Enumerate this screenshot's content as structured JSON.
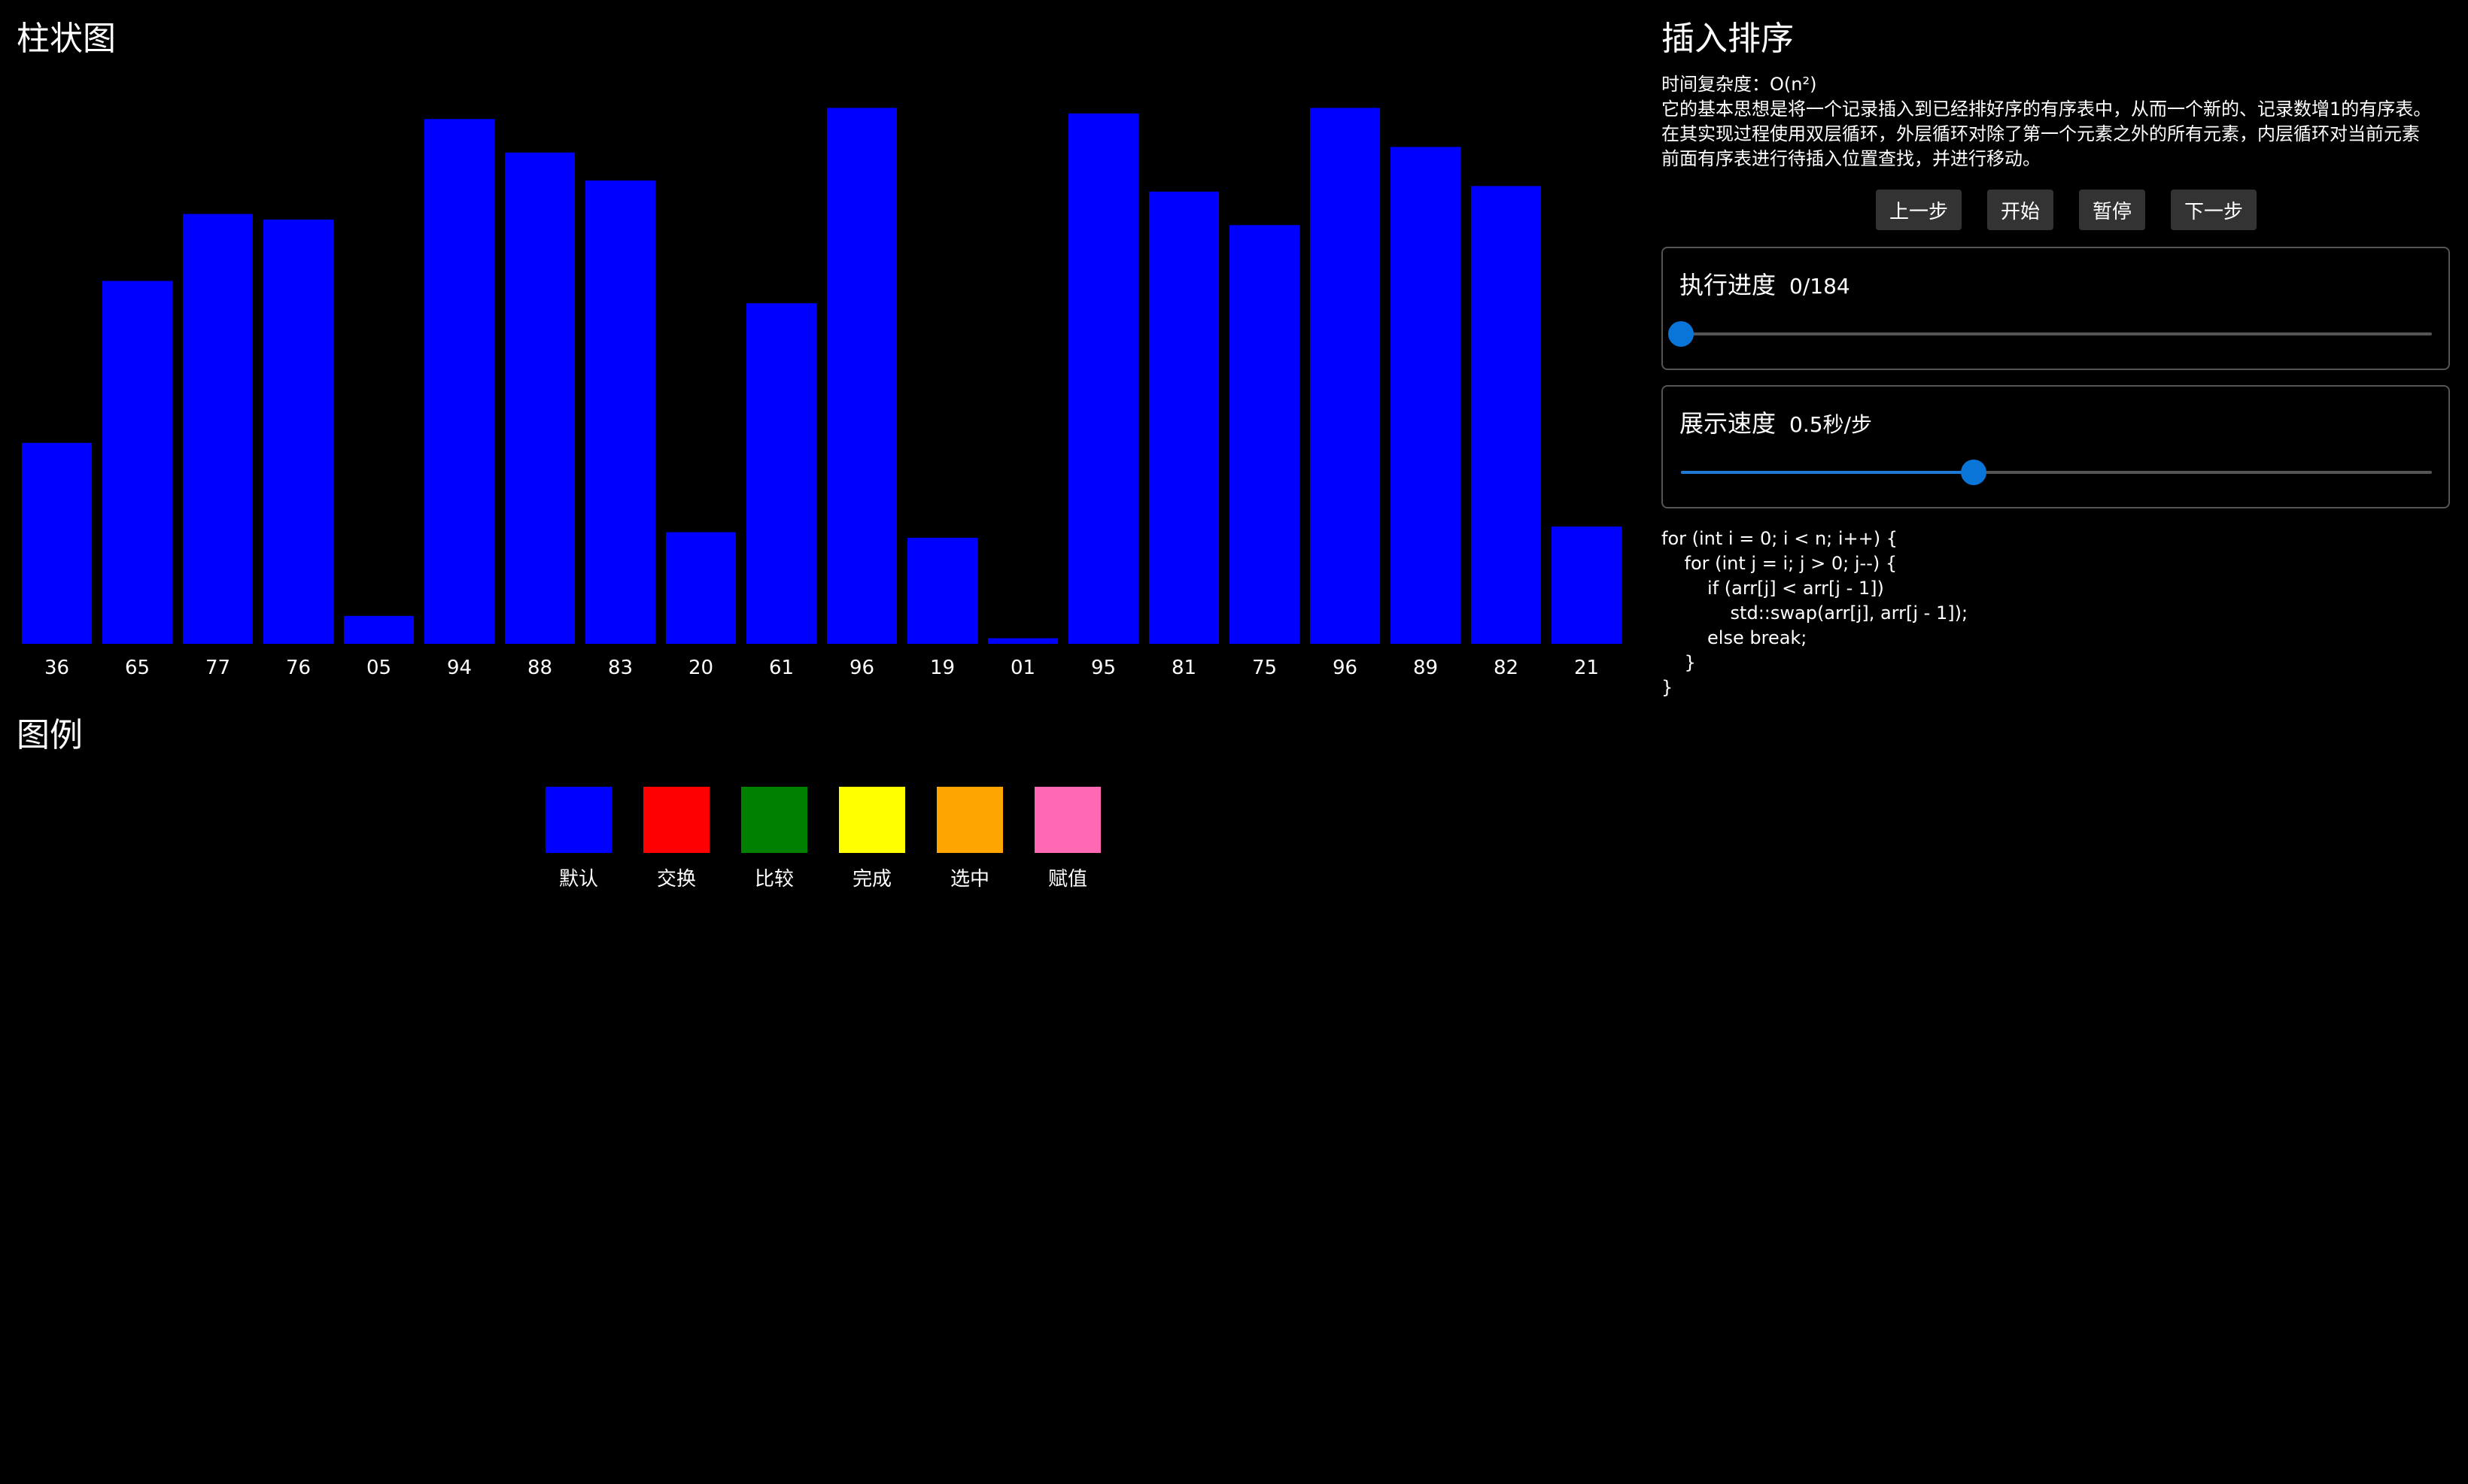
{
  "chart": {
    "title": "柱状图"
  },
  "chart_data": {
    "type": "bar",
    "categories": [
      "36",
      "65",
      "77",
      "76",
      "05",
      "94",
      "88",
      "83",
      "20",
      "61",
      "96",
      "19",
      "01",
      "95",
      "81",
      "75",
      "96",
      "89",
      "82",
      "21"
    ],
    "values": [
      36,
      65,
      77,
      76,
      5,
      94,
      88,
      83,
      20,
      61,
      96,
      19,
      1,
      95,
      81,
      75,
      96,
      89,
      82,
      21
    ],
    "ylim": [
      0,
      97
    ],
    "bar_color": "#0000ff",
    "grid": false
  },
  "legend": {
    "title": "图例",
    "items": [
      {
        "label": "默认",
        "color": "#0000ff"
      },
      {
        "label": "交换",
        "color": "#ff0000"
      },
      {
        "label": "比较",
        "color": "#008000"
      },
      {
        "label": "完成",
        "color": "#ffff00"
      },
      {
        "label": "选中",
        "color": "#ffa500"
      },
      {
        "label": "赋值",
        "color": "#ff69b4"
      }
    ]
  },
  "algorithm": {
    "title": "插入排序",
    "complexity": "时间复杂度：O(n²)",
    "description": [
      "它的基本思想是将一个记录插入到已经排好序的有序表中，从而一个新的、记录数增1的有序表。",
      "在其实现过程使用双层循环，外层循环对除了第一个元素之外的所有元素，内层循环对当前元素",
      "前面有序表进行待插入位置查找，并进行移动。"
    ]
  },
  "controls": {
    "prev": "上一步",
    "start": "开始",
    "pause": "暂停",
    "next": "下一步"
  },
  "progress": {
    "label": "执行进度",
    "value_text": "0/184",
    "fraction": 0.0
  },
  "speed": {
    "label": "展示速度",
    "value_text": "0.5秒/步",
    "fraction": 0.39
  },
  "accent_color": "#0a75d8",
  "code": {
    "lines": [
      "for (int i = 0; i < n; i++) {",
      "    for (int j = i; j > 0; j--) {",
      "        if (arr[j] < arr[j - 1])",
      "            std::swap(arr[j], arr[j - 1]);",
      "        else break;",
      "    }",
      "}"
    ]
  }
}
